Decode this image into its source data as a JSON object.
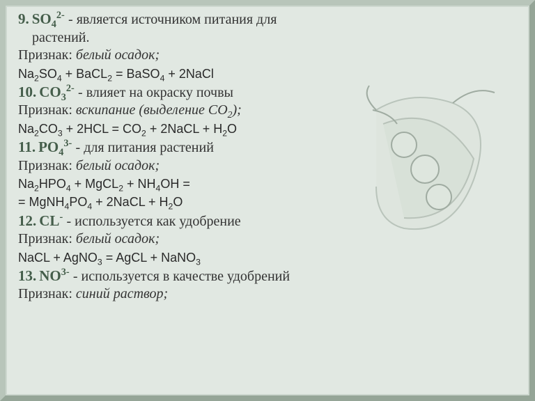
{
  "colors": {
    "slide_bg": "#e1e8e2",
    "border_light": "#b8c5ba",
    "border_dark": "#95a597",
    "heading": "#445d4a",
    "text": "#333333",
    "equation": "#2a2a2a",
    "peapod_outline": "#6a7a6c",
    "peapod_fill": "#c7d3c6"
  },
  "typography": {
    "heading_fontsize_pt": 16,
    "body_fontsize_pt": 15,
    "equation_fontsize_pt": 13,
    "heading_family": "Georgia",
    "equation_family": "Arial"
  },
  "items": [
    {
      "num": "9.",
      "ion_base": "SO",
      "ion_sub": "4",
      "ion_sup": "2-",
      "desc_prefix": " - является источником питания для",
      "desc_line2": "растений.",
      "sign_label": "Признак: ",
      "sign": "белый осадок;",
      "eq": "Na<sub>2</sub>SO<sub>4</sub> + BaCL<sub>2</sub> = BaSO<sub>4</sub> + 2NaCl"
    },
    {
      "num": "10.",
      "ion_base": "CO",
      "ion_sub": "3",
      "ion_sup": "2-",
      "desc": " - влияет на окраску почвы",
      "sign_label": "Признак: ",
      "sign": "вскипание (выделение CO",
      "sign_sub": "2",
      "sign_tail": ");",
      "eq": "Na<sub>2</sub>CO<sub>3</sub> + 2HCL = CO<sub>2</sub> + 2NaCL + H<sub>2</sub>O"
    },
    {
      "num": "11.",
      "ion_base": "PO",
      "ion_sub": "4",
      "ion_sup": "3-",
      "desc": " - для питания растений",
      "sign_label": "Признак: ",
      "sign": "белый осадок;",
      "eq1": "Na<sub>2</sub>HPO<sub>4</sub> + MgCL<sub>2</sub> + NH<sub>4</sub>OH =",
      "eq2": "= MgNH<sub>4</sub>PO<sub>4</sub> + 2NaCL + H<sub>2</sub>O"
    },
    {
      "num": "12.",
      "ion_base": "CL",
      "ion_sup": "-",
      "desc": " - используется как удобрение",
      "sign_label": "Признак: ",
      "sign": "белый осадок;",
      "eq": "NaCL + AgNO<sub>3</sub> = AgCL + NaNO<sub>3</sub>"
    },
    {
      "num": "13.",
      "ion_base": "NO",
      "ion_sup": "3-",
      "desc": " - используется в качестве удобрений",
      "sign_label": "Признак: ",
      "sign": "синий раствор;"
    }
  ]
}
